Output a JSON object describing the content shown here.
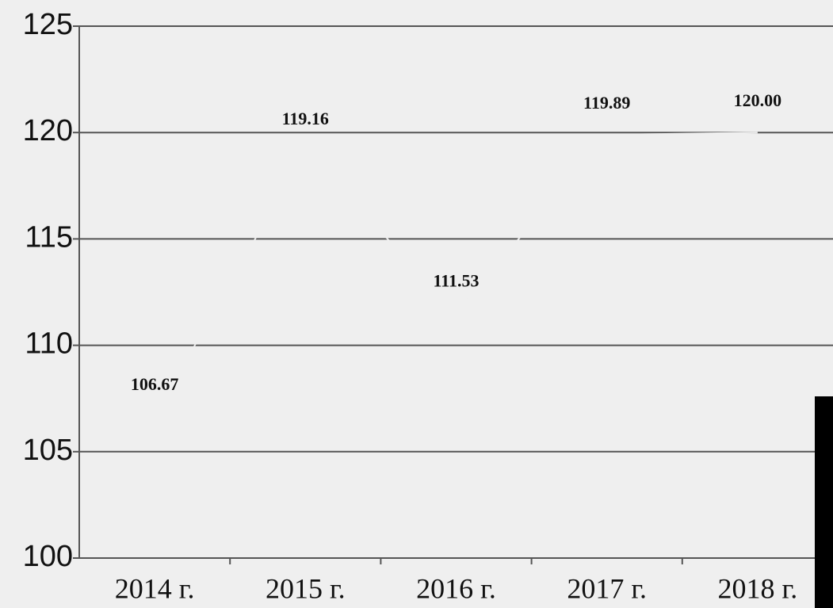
{
  "chart_data": {
    "type": "line",
    "categories": [
      "2014 г.",
      "2015 г.",
      "2016 г.",
      "2017 г.",
      "2018 г."
    ],
    "series": [
      {
        "name": "",
        "color": "#efefef",
        "values": [
          106.67,
          119.16,
          111.53,
          119.89,
          120.0
        ],
        "value_labels": [
          "106.67",
          "119.16",
          "111.53",
          "119.89",
          "120.00"
        ]
      }
    ],
    "ylim": [
      100,
      125
    ],
    "yticks": [
      100,
      105,
      110,
      115,
      120,
      125
    ],
    "grid": true
  }
}
